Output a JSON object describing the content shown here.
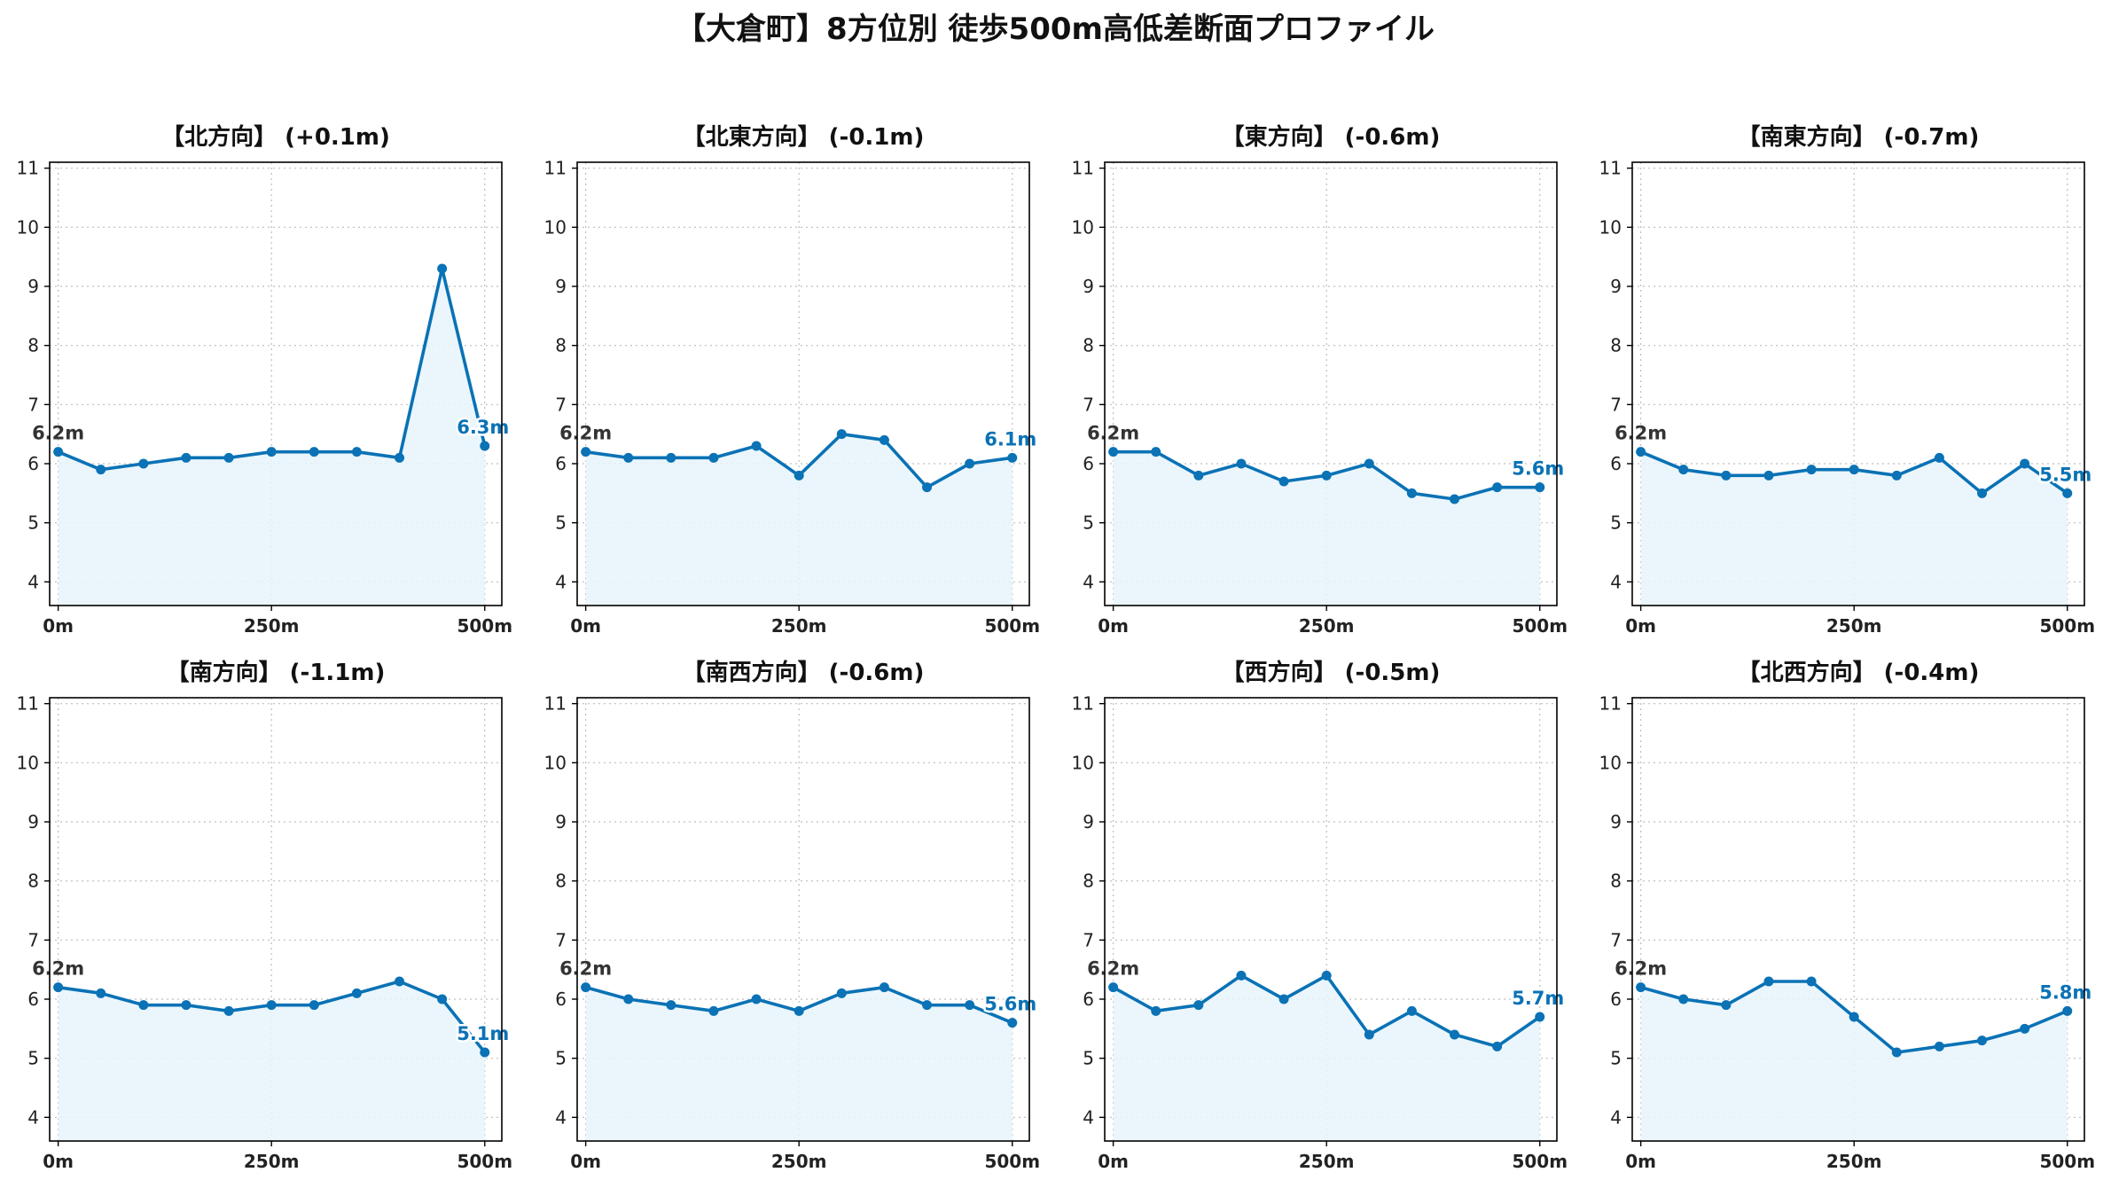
{
  "title": "【大倉町】8方位別 徒歩500m高低差断面プロファイル",
  "chart_data": [
    {
      "type": "area",
      "title": "【北方向】 (+0.1m)",
      "x": [
        0,
        50,
        100,
        150,
        200,
        250,
        300,
        350,
        400,
        450,
        500
      ],
      "values": [
        6.2,
        5.9,
        6.0,
        6.1,
        6.1,
        6.2,
        6.2,
        6.2,
        6.1,
        9.3,
        6.3
      ],
      "start_label": "6.2m",
      "end_label": "6.3m",
      "xlim": [
        -10,
        520
      ],
      "ylim": [
        3.6,
        11.1
      ],
      "xticks": [
        0,
        250,
        500
      ],
      "xtick_labels": [
        "0m",
        "250m",
        "500m"
      ],
      "yticks": [
        4,
        5,
        6,
        7,
        8,
        9,
        10,
        11
      ],
      "ytick_labels": [
        "4",
        "5",
        "6",
        "7",
        "8",
        "9",
        "10",
        "11"
      ],
      "grid": true
    },
    {
      "type": "area",
      "title": "【北東方向】 (-0.1m)",
      "x": [
        0,
        50,
        100,
        150,
        200,
        250,
        300,
        350,
        400,
        450,
        500
      ],
      "values": [
        6.2,
        6.1,
        6.1,
        6.1,
        6.3,
        5.8,
        6.5,
        6.4,
        5.6,
        6.0,
        6.1
      ],
      "start_label": "6.2m",
      "end_label": "6.1m",
      "xlim": [
        -10,
        520
      ],
      "ylim": [
        3.6,
        11.1
      ],
      "xticks": [
        0,
        250,
        500
      ],
      "xtick_labels": [
        "0m",
        "250m",
        "500m"
      ],
      "yticks": [
        4,
        5,
        6,
        7,
        8,
        9,
        10,
        11
      ],
      "ytick_labels": [
        "4",
        "5",
        "6",
        "7",
        "8",
        "9",
        "10",
        "11"
      ],
      "grid": true
    },
    {
      "type": "area",
      "title": "【東方向】 (-0.6m)",
      "x": [
        0,
        50,
        100,
        150,
        200,
        250,
        300,
        350,
        400,
        450,
        500
      ],
      "values": [
        6.2,
        6.2,
        5.8,
        6.0,
        5.7,
        5.8,
        6.0,
        5.5,
        5.4,
        5.6,
        5.6
      ],
      "start_label": "6.2m",
      "end_label": "5.6m",
      "xlim": [
        -10,
        520
      ],
      "ylim": [
        3.6,
        11.1
      ],
      "xticks": [
        0,
        250,
        500
      ],
      "xtick_labels": [
        "0m",
        "250m",
        "500m"
      ],
      "yticks": [
        4,
        5,
        6,
        7,
        8,
        9,
        10,
        11
      ],
      "ytick_labels": [
        "4",
        "5",
        "6",
        "7",
        "8",
        "9",
        "10",
        "11"
      ],
      "grid": true
    },
    {
      "type": "area",
      "title": "【南東方向】 (-0.7m)",
      "x": [
        0,
        50,
        100,
        150,
        200,
        250,
        300,
        350,
        400,
        450,
        500
      ],
      "values": [
        6.2,
        5.9,
        5.8,
        5.8,
        5.9,
        5.9,
        5.8,
        6.1,
        5.5,
        6.0,
        5.5
      ],
      "start_label": "6.2m",
      "end_label": "5.5m",
      "xlim": [
        -10,
        520
      ],
      "ylim": [
        3.6,
        11.1
      ],
      "xticks": [
        0,
        250,
        500
      ],
      "xtick_labels": [
        "0m",
        "250m",
        "500m"
      ],
      "yticks": [
        4,
        5,
        6,
        7,
        8,
        9,
        10,
        11
      ],
      "ytick_labels": [
        "4",
        "5",
        "6",
        "7",
        "8",
        "9",
        "10",
        "11"
      ],
      "grid": true
    },
    {
      "type": "area",
      "title": "【南方向】 (-1.1m)",
      "x": [
        0,
        50,
        100,
        150,
        200,
        250,
        300,
        350,
        400,
        450,
        500
      ],
      "values": [
        6.2,
        6.1,
        5.9,
        5.9,
        5.8,
        5.9,
        5.9,
        6.1,
        6.3,
        6.0,
        5.1
      ],
      "start_label": "6.2m",
      "end_label": "5.1m",
      "xlim": [
        -10,
        520
      ],
      "ylim": [
        3.6,
        11.1
      ],
      "xticks": [
        0,
        250,
        500
      ],
      "xtick_labels": [
        "0m",
        "250m",
        "500m"
      ],
      "yticks": [
        4,
        5,
        6,
        7,
        8,
        9,
        10,
        11
      ],
      "ytick_labels": [
        "4",
        "5",
        "6",
        "7",
        "8",
        "9",
        "10",
        "11"
      ],
      "grid": true
    },
    {
      "type": "area",
      "title": "【南西方向】 (-0.6m)",
      "x": [
        0,
        50,
        100,
        150,
        200,
        250,
        300,
        350,
        400,
        450,
        500
      ],
      "values": [
        6.2,
        6.0,
        5.9,
        5.8,
        6.0,
        5.8,
        6.1,
        6.2,
        5.9,
        5.9,
        5.6
      ],
      "start_label": "6.2m",
      "end_label": "5.6m",
      "xlim": [
        -10,
        520
      ],
      "ylim": [
        3.6,
        11.1
      ],
      "xticks": [
        0,
        250,
        500
      ],
      "xtick_labels": [
        "0m",
        "250m",
        "500m"
      ],
      "yticks": [
        4,
        5,
        6,
        7,
        8,
        9,
        10,
        11
      ],
      "ytick_labels": [
        "4",
        "5",
        "6",
        "7",
        "8",
        "9",
        "10",
        "11"
      ],
      "grid": true
    },
    {
      "type": "area",
      "title": "【西方向】 (-0.5m)",
      "x": [
        0,
        50,
        100,
        150,
        200,
        250,
        300,
        350,
        400,
        450,
        500
      ],
      "values": [
        6.2,
        5.8,
        5.9,
        6.4,
        6.0,
        6.4,
        5.4,
        5.8,
        5.4,
        5.2,
        5.7
      ],
      "start_label": "6.2m",
      "end_label": "5.7m",
      "xlim": [
        -10,
        520
      ],
      "ylim": [
        3.6,
        11.1
      ],
      "xticks": [
        0,
        250,
        500
      ],
      "xtick_labels": [
        "0m",
        "250m",
        "500m"
      ],
      "yticks": [
        4,
        5,
        6,
        7,
        8,
        9,
        10,
        11
      ],
      "ytick_labels": [
        "4",
        "5",
        "6",
        "7",
        "8",
        "9",
        "10",
        "11"
      ],
      "grid": true
    },
    {
      "type": "area",
      "title": "【北西方向】 (-0.4m)",
      "x": [
        0,
        50,
        100,
        150,
        200,
        250,
        300,
        350,
        400,
        450,
        500
      ],
      "values": [
        6.2,
        6.0,
        5.9,
        6.3,
        6.3,
        5.7,
        5.1,
        5.2,
        5.3,
        5.5,
        5.8
      ],
      "start_label": "6.2m",
      "end_label": "5.8m",
      "xlim": [
        -10,
        520
      ],
      "ylim": [
        3.6,
        11.1
      ],
      "xticks": [
        0,
        250,
        500
      ],
      "xtick_labels": [
        "0m",
        "250m",
        "500m"
      ],
      "yticks": [
        4,
        5,
        6,
        7,
        8,
        9,
        10,
        11
      ],
      "ytick_labels": [
        "4",
        "5",
        "6",
        "7",
        "8",
        "9",
        "10",
        "11"
      ],
      "grid": true
    }
  ]
}
